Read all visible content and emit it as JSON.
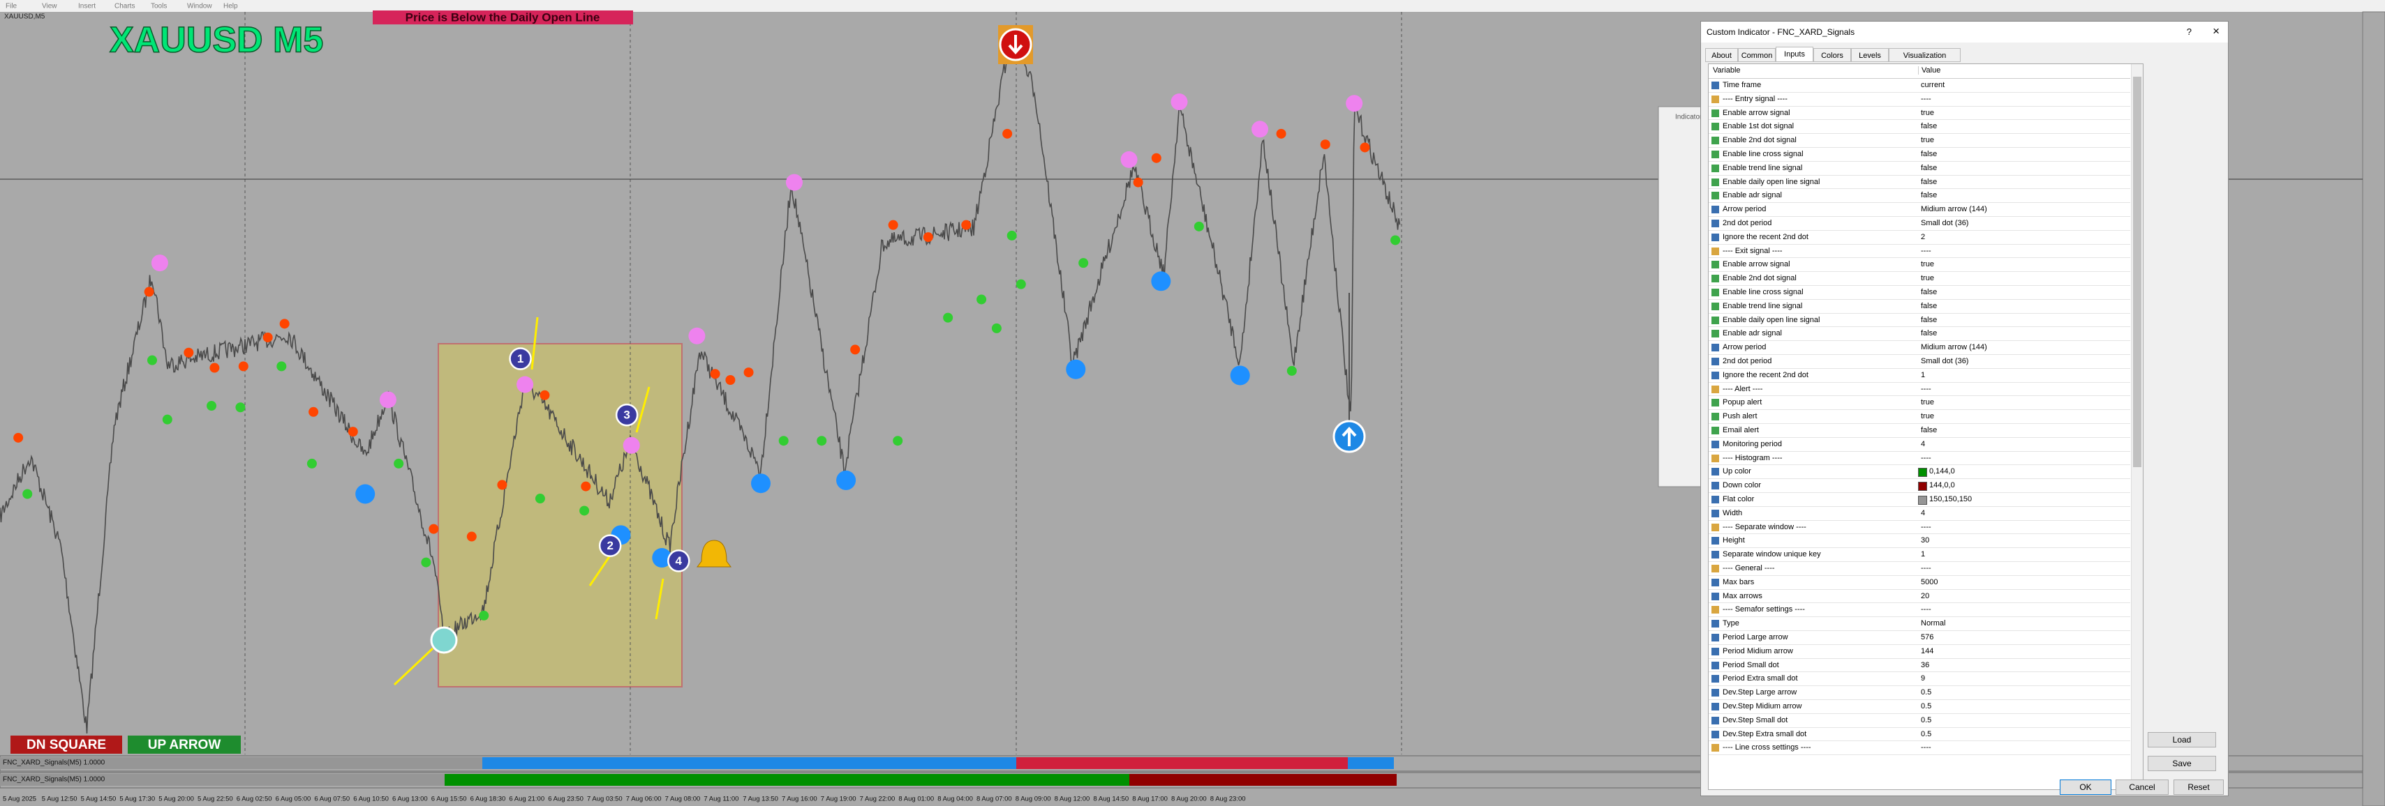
{
  "menu": [
    "File",
    "View",
    "Insert",
    "Charts",
    "Tools",
    "Window",
    "Help"
  ],
  "chart": {
    "window_label": "XAUUSD,M5",
    "symbol_title": "XAUUSD M5",
    "banner": "Price is Below the Daily Open Line",
    "badges": [
      "DN SQUARE",
      "UP ARROW"
    ],
    "markers": [
      "1",
      "2",
      "3",
      "4"
    ],
    "sub_windows": [
      "FNC_XARD_Signals(M5) 1.0000",
      "FNC_XARD_Signals(M5) 1.0000"
    ],
    "time_labels": [
      "5 Aug 2025",
      "5 Aug 12:50",
      "5 Aug 14:50",
      "5 Aug 17:30",
      "5 Aug 20:00",
      "5 Aug 22:50",
      "6 Aug 02:50",
      "6 Aug 05:00",
      "6 Aug 07:50",
      "6 Aug 10:50",
      "6 Aug 13:00",
      "6 Aug 15:50",
      "6 Aug 18:30",
      "6 Aug 21:00",
      "6 Aug 23:50",
      "7 Aug 03:50",
      "7 Aug 06:00",
      "7 Aug 08:00",
      "7 Aug 11:00",
      "7 Aug 13:50",
      "7 Aug 16:00",
      "7 Aug 19:00",
      "7 Aug 22:00",
      "8 Aug 01:00",
      "8 Aug 04:00",
      "8 Aug 07:00",
      "8 Aug 09:00",
      "8 Aug 12:00",
      "8 Aug 14:50",
      "8 Aug 17:00",
      "8 Aug 20:00",
      "8 Aug 23:00"
    ]
  },
  "dialog": {
    "title": "Custom Indicator - FNC_XARD_Signals",
    "tabs": [
      "About",
      "Common",
      "Inputs",
      "Colors",
      "Levels",
      "Visualization"
    ],
    "columns": [
      "Variable",
      "Value"
    ],
    "rows": [
      [
        "Time frame",
        "current"
      ],
      [
        "---- Entry signal ----",
        "----"
      ],
      [
        "Enable arrow signal",
        "true"
      ],
      [
        "Enable 1st dot signal",
        "false"
      ],
      [
        "Enable 2nd dot signal",
        "true"
      ],
      [
        "Enable line cross signal",
        "false"
      ],
      [
        "Enable trend line signal",
        "false"
      ],
      [
        "Enable daily open line signal",
        "false"
      ],
      [
        "Enable adr signal",
        "false"
      ],
      [
        "Arrow period",
        "Midium arrow (144)"
      ],
      [
        "2nd dot period",
        "Small dot (36)"
      ],
      [
        "Ignore the recent 2nd dot",
        "2"
      ],
      [
        "---- Exit signal ----",
        "----"
      ],
      [
        "Enable arrow signal",
        "true"
      ],
      [
        "Enable 2nd dot signal",
        "true"
      ],
      [
        "Enable line cross signal",
        "false"
      ],
      [
        "Enable trend line signal",
        "false"
      ],
      [
        "Enable daily open line signal",
        "false"
      ],
      [
        "Enable adr signal",
        "false"
      ],
      [
        "Arrow period",
        "Midium arrow (144)"
      ],
      [
        "2nd dot period",
        "Small dot (36)"
      ],
      [
        "Ignore the recent 2nd dot",
        "1"
      ],
      [
        "---- Alert ----",
        "----"
      ],
      [
        "Popup alert",
        "true"
      ],
      [
        "Push alert",
        "true"
      ],
      [
        "Email alert",
        "false"
      ],
      [
        "Monitoring period",
        "4"
      ],
      [
        "---- Histogram ----",
        "----"
      ],
      [
        "Up color",
        "0,144,0"
      ],
      [
        "Down color",
        "144,0,0"
      ],
      [
        "Flat color",
        "150,150,150"
      ],
      [
        "Width",
        "4"
      ],
      [
        "---- Separate window ----",
        "----"
      ],
      [
        "Height",
        "30"
      ],
      [
        "Separate window unique key",
        "1"
      ],
      [
        "---- General ----",
        "----"
      ],
      [
        "Max bars",
        "5000"
      ],
      [
        "Max arrows",
        "20"
      ],
      [
        "---- Semafor settings ----",
        "----"
      ],
      [
        "Type",
        "Normal"
      ],
      [
        "Period Large arrow",
        "576"
      ],
      [
        "Period Midium arrow",
        "144"
      ],
      [
        "Period Small dot",
        "36"
      ],
      [
        "Period Extra small dot",
        "9"
      ],
      [
        "Dev.Step Large arrow",
        "0.5"
      ],
      [
        "Dev.Step Midium arrow",
        "0.5"
      ],
      [
        "Dev.Step Small dot",
        "0.5"
      ],
      [
        "Dev.Step Extra small dot",
        "0.5"
      ],
      [
        "---- Line cross settings ----",
        "----"
      ]
    ],
    "side_buttons": [
      "Load",
      "Save"
    ],
    "buttons": [
      "OK",
      "Cancel",
      "Reset"
    ],
    "help": "?",
    "close": "×"
  },
  "side_panel": {
    "title": "Indicators"
  }
}
